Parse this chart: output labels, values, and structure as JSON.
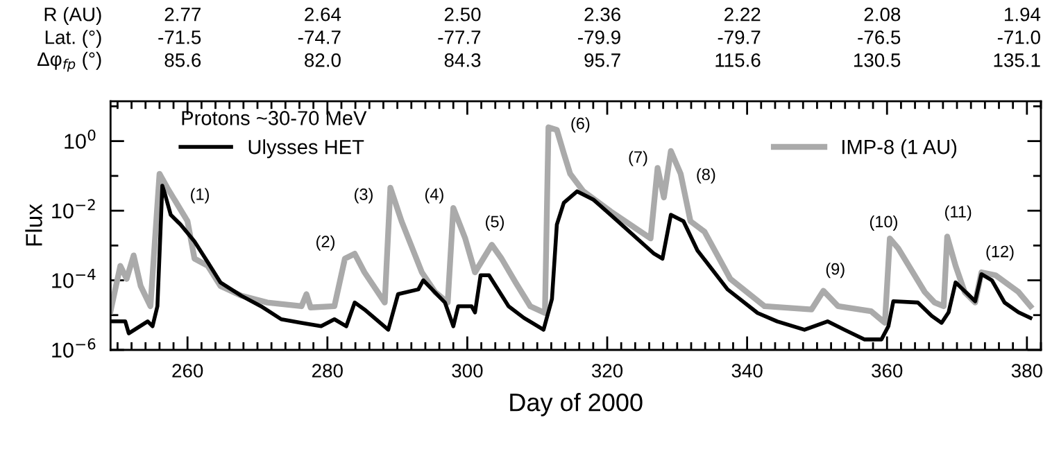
{
  "chart_data": {
    "type": "line",
    "xlabel": "Day of 2000",
    "ylabel": "Flux",
    "legend_title": "Protons ~30-70 MeV",
    "legend": "top left",
    "log": "y",
    "grid": false,
    "marker": "none",
    "line_style": "solid",
    "xlim": [
      249,
      382
    ],
    "xticks": [
      260,
      280,
      300,
      320,
      340,
      360,
      380
    ],
    "ylim": [
      1e-06,
      14
    ],
    "yticks": [
      {
        "value": 1e-06,
        "label": "10$^{−6}$"
      },
      {
        "value": 1e-05,
        "label": null
      },
      {
        "value": 0.0001,
        "label": "10$^{−4}$"
      },
      {
        "value": 0.001,
        "label": null
      },
      {
        "value": 0.01,
        "label": "10$^{−2}$"
      },
      {
        "value": 0.1,
        "label": null
      },
      {
        "value": 1,
        "label": "10$^{0}$"
      },
      {
        "value": 10,
        "label": null
      }
    ],
    "series": [
      {
        "name": "Ulysses HET",
        "color": "#000000",
        "x": [
          249.0,
          251.1,
          251.6,
          254.3,
          255.0,
          255.7,
          256.4,
          256.8,
          257.6,
          259.0,
          261.0,
          262.9,
          264.7,
          267.7,
          270.5,
          273.4,
          276.3,
          279.1,
          281.0,
          282.7,
          283.9,
          285.3,
          288.7,
          290.1,
          293.0,
          293.7,
          296.8,
          298.0,
          298.7,
          300.6,
          301.1,
          301.9,
          303.1,
          305.9,
          308.1,
          310.9,
          312.1,
          312.8,
          313.8,
          315.7,
          318.0,
          320.5,
          326.7,
          327.9,
          329.1,
          330.9,
          332.9,
          337.2,
          341.5,
          344.3,
          348.2,
          351.5,
          353.9,
          356.8,
          359.2,
          360.2,
          360.9,
          364.4,
          366.4,
          367.8,
          368.8,
          369.8,
          372.6,
          373.5,
          375.0,
          376.8,
          378.8,
          380.5
        ],
        "values": [
          6.6e-06,
          6.6e-06,
          3e-06,
          6.6e-06,
          4.8e-06,
          1.8e-05,
          0.052,
          0.029,
          0.0076,
          0.004,
          0.0013,
          0.00033,
          8.7e-05,
          3.6e-05,
          1.8e-05,
          7.6e-06,
          6e-06,
          4.8e-06,
          7.6e-06,
          4.8e-06,
          2.3e-05,
          1.45e-05,
          3.8e-06,
          4e-05,
          5.5e-05,
          0.0001,
          2.3e-05,
          4.8e-06,
          1.8e-05,
          1.8e-05,
          1.2e-05,
          0.00014,
          0.00014,
          1.8e-05,
          8.3e-06,
          3.8e-06,
          2.9e-05,
          0.004,
          0.017,
          0.036,
          0.021,
          0.0076,
          0.00058,
          0.00042,
          0.0076,
          0.005,
          0.00072,
          5.5e-05,
          1.15e-05,
          6.6e-06,
          3.8e-06,
          6.6e-06,
          3.8e-06,
          2e-06,
          2e-06,
          4.8e-06,
          2.5e-05,
          2.3e-05,
          9.5e-06,
          6e-06,
          1.2e-05,
          8.7e-05,
          2.5e-05,
          0.00015,
          0.0001,
          2.3e-05,
          1.2e-05,
          8.3e-06
        ]
      },
      {
        "name": "IMP-8 (1 AU)",
        "color": "#aaaaaa",
        "x": [
          249.0,
          250.4,
          251.3,
          252.3,
          253.3,
          254.7,
          256.0,
          257.1,
          260.0,
          261.0,
          262.9,
          264.7,
          267.7,
          271.4,
          276.3,
          277.0,
          277.6,
          281.0,
          282.5,
          283.9,
          285.3,
          288.2,
          289.0,
          290.6,
          293.5,
          295.4,
          297.2,
          298.0,
          299.7,
          301.1,
          303.5,
          304.9,
          306.9,
          309.0,
          311.1,
          311.6,
          312.8,
          313.8,
          314.7,
          316.6,
          320.5,
          326.2,
          327.2,
          328.1,
          329.1,
          330.5,
          331.9,
          333.9,
          337.6,
          342.5,
          349.2,
          350.9,
          353.0,
          357.7,
          359.7,
          360.4,
          361.6,
          365.4,
          366.8,
          368.1,
          368.6,
          369.8,
          371.1,
          372.6,
          373.5,
          375.5,
          378.8,
          380.5
        ],
        "values": [
          1.3e-05,
          0.00026,
          0.00011,
          0.00052,
          6.9e-05,
          1.8e-05,
          0.115,
          0.046,
          0.005,
          0.00042,
          0.00026,
          6.9e-05,
          3.6e-05,
          2.3e-05,
          1.8e-05,
          4e-05,
          1.66e-05,
          1.8e-05,
          0.00042,
          0.00058,
          0.00017,
          2.3e-05,
          0.046,
          0.005,
          0.00017,
          4.6e-05,
          2.3e-05,
          0.012,
          0.0016,
          0.00017,
          0.00105,
          0.00042,
          8.7e-05,
          1.8e-05,
          1.15e-05,
          2.5,
          2.1,
          0.44,
          0.115,
          0.036,
          0.0095,
          0.0016,
          0.17,
          0.024,
          0.52,
          0.115,
          0.005,
          0.0025,
          0.00011,
          1.8e-05,
          1.45e-05,
          5e-05,
          1.8e-05,
          1.3e-05,
          6e-06,
          0.0016,
          0.00083,
          4.6e-05,
          2.3e-05,
          1.8e-05,
          0.0018,
          0.00026,
          4.6e-05,
          2.3e-05,
          0.00017,
          0.00014,
          4.6e-05,
          1.8e-05
        ]
      }
    ],
    "annotations": [
      "(1)",
      "(2)",
      "(3)",
      "(4)",
      "(5)",
      "(6)",
      "(7)",
      "(8)",
      "(9)",
      "(10)",
      "(11)",
      "(12)",
      "R (AU)",
      "2.77",
      "2.64",
      "2.50",
      "2.36",
      "2.22",
      "2.08",
      "1.94",
      "Lat. (°)",
      "-71.5",
      "-74.7",
      "-77.7",
      "-79.9",
      "-79.7",
      "-76.5",
      "-71.0",
      "Δφ$_{fp}$ (°)",
      "85.6",
      "82.0",
      "84.3",
      "95.7",
      "115.6",
      "130.5",
      "135.1"
    ]
  }
}
